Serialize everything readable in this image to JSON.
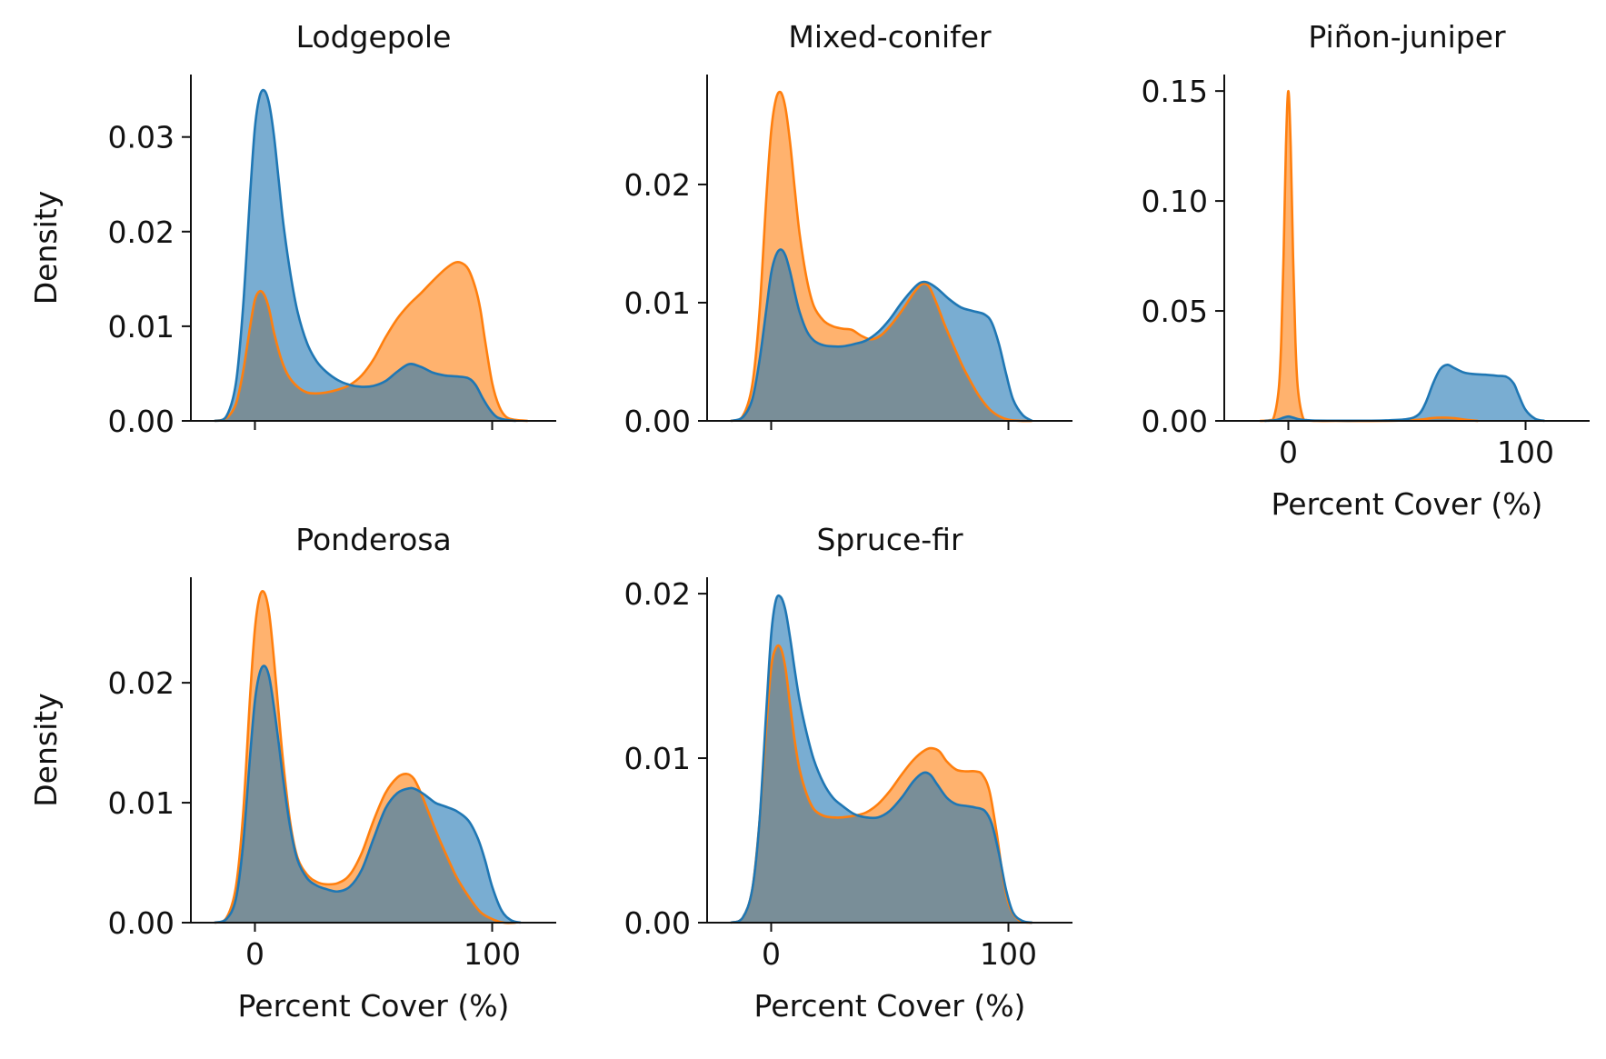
{
  "chart_data": [
    {
      "type": "area",
      "title": "Lodgepole",
      "xlabel": "",
      "ylabel": "Density",
      "xlim": [
        -27,
        127
      ],
      "ylim": [
        0,
        0.0366
      ],
      "xticks": [
        0,
        100
      ],
      "xtick_labels": [
        "",
        ""
      ],
      "yticks": [
        0,
        0.01,
        0.02,
        0.03
      ],
      "ytick_labels": [
        "0.00",
        "0.01",
        "0.02",
        "0.03"
      ],
      "series": [
        {
          "color": "#ff7f0e",
          "x": [
            -17,
            -12,
            -8,
            -5,
            -2,
            0,
            2,
            4,
            6,
            8,
            11,
            14,
            18,
            22,
            26,
            30,
            35,
            40,
            45,
            50,
            55,
            60,
            65,
            70,
            75,
            80,
            84,
            87,
            90,
            93,
            95,
            97,
            100,
            103,
            106,
            110,
            115
          ],
          "y": [
            0,
            0.0003,
            0.0018,
            0.0052,
            0.01,
            0.0128,
            0.0137,
            0.0133,
            0.0118,
            0.0094,
            0.0066,
            0.0048,
            0.0036,
            0.003,
            0.0029,
            0.003,
            0.0033,
            0.0038,
            0.0048,
            0.0065,
            0.0088,
            0.0108,
            0.0123,
            0.0135,
            0.0148,
            0.016,
            0.0167,
            0.0167,
            0.016,
            0.014,
            0.0118,
            0.0085,
            0.004,
            0.0015,
            0.0004,
            0.0001,
            0
          ]
        },
        {
          "color": "#1f77b4",
          "x": [
            -17,
            -12,
            -8,
            -5,
            -2,
            0,
            2,
            4,
            6,
            8,
            10,
            12,
            15,
            18,
            22,
            26,
            30,
            35,
            40,
            45,
            50,
            55,
            60,
            65,
            70,
            75,
            80,
            85,
            90,
            93,
            96,
            99,
            102,
            106,
            110
          ],
          "y": [
            0,
            0.0005,
            0.004,
            0.012,
            0.024,
            0.031,
            0.0343,
            0.0349,
            0.0335,
            0.0302,
            0.0255,
            0.0208,
            0.0155,
            0.0115,
            0.0082,
            0.0063,
            0.0052,
            0.0043,
            0.0038,
            0.0036,
            0.0037,
            0.0042,
            0.0052,
            0.006,
            0.0057,
            0.0051,
            0.0048,
            0.0047,
            0.0045,
            0.0038,
            0.0024,
            0.0012,
            0.0004,
            0.0001,
            0
          ]
        }
      ]
    },
    {
      "type": "area",
      "title": "Mixed-conifer",
      "xlabel": "",
      "ylabel": "",
      "xlim": [
        -27,
        127
      ],
      "ylim": [
        0,
        0.0293
      ],
      "xticks": [
        0,
        100
      ],
      "xtick_labels": [
        "",
        ""
      ],
      "yticks": [
        0,
        0.01,
        0.02
      ],
      "ytick_labels": [
        "0.00",
        "0.01",
        "0.02"
      ],
      "series": [
        {
          "color": "#ff7f0e",
          "x": [
            -17,
            -12,
            -8,
            -5,
            -2,
            0,
            2,
            4,
            6,
            8,
            10,
            12,
            15,
            18,
            22,
            26,
            30,
            34,
            38,
            42,
            46,
            50,
            55,
            60,
            63,
            65,
            67,
            70,
            73,
            77,
            81,
            85,
            88,
            92,
            96,
            100,
            105,
            110
          ],
          "y": [
            0,
            0.0004,
            0.003,
            0.009,
            0.019,
            0.0245,
            0.0272,
            0.0278,
            0.0265,
            0.0235,
            0.0195,
            0.0158,
            0.012,
            0.0097,
            0.0085,
            0.008,
            0.0078,
            0.0077,
            0.0072,
            0.0069,
            0.0072,
            0.008,
            0.0093,
            0.0108,
            0.0115,
            0.0116,
            0.0112,
            0.0098,
            0.0082,
            0.0063,
            0.0045,
            0.003,
            0.002,
            0.001,
            0.0004,
            0.0001,
            0,
            0
          ]
        },
        {
          "color": "#1f77b4",
          "x": [
            -17,
            -12,
            -8,
            -5,
            -2,
            0,
            2,
            4,
            6,
            8,
            10,
            12,
            15,
            18,
            22,
            26,
            30,
            35,
            40,
            45,
            50,
            55,
            60,
            63,
            66,
            70,
            75,
            80,
            85,
            90,
            93,
            96,
            99,
            102,
            106,
            110
          ],
          "y": [
            0,
            0.0003,
            0.0018,
            0.005,
            0.0095,
            0.0125,
            0.014,
            0.0145,
            0.014,
            0.0126,
            0.0108,
            0.0092,
            0.0076,
            0.0068,
            0.0064,
            0.0063,
            0.0063,
            0.0065,
            0.0068,
            0.0075,
            0.0086,
            0.01,
            0.0112,
            0.0117,
            0.0117,
            0.0112,
            0.0103,
            0.0096,
            0.0093,
            0.009,
            0.0083,
            0.0065,
            0.004,
            0.0018,
            0.0005,
            0
          ]
        }
      ]
    },
    {
      "type": "area",
      "title": "Piñon-juniper",
      "xlabel": "Percent Cover (%)",
      "ylabel": "",
      "xlim": [
        -27,
        127
      ],
      "ylim": [
        0,
        0.1575
      ],
      "xticks": [
        0,
        100
      ],
      "xtick_labels": [
        "0",
        "100"
      ],
      "yticks": [
        0,
        0.05,
        0.1,
        0.15
      ],
      "ytick_labels": [
        "0.00",
        "0.05",
        "0.10",
        "0.15"
      ],
      "series": [
        {
          "color": "#ff7f0e",
          "x": [
            -12,
            -8,
            -6,
            -4,
            -3,
            -2,
            -1,
            0,
            1,
            2,
            3,
            4,
            6,
            8,
            12,
            20,
            40,
            55,
            60,
            65,
            70,
            75,
            80
          ],
          "y": [
            0,
            0.0003,
            0.002,
            0.015,
            0.036,
            0.075,
            0.125,
            0.15,
            0.125,
            0.075,
            0.036,
            0.015,
            0.002,
            0.0003,
            0,
            0,
            0,
            0.0005,
            0.0012,
            0.0015,
            0.0012,
            0.0005,
            0
          ]
        },
        {
          "color": "#1f77b4",
          "x": [
            -10,
            -5,
            -2,
            0,
            2,
            5,
            10,
            20,
            30,
            40,
            50,
            55,
            58,
            61,
            64,
            67,
            70,
            74,
            78,
            83,
            88,
            92,
            95,
            97,
            100,
            104,
            108
          ],
          "y": [
            0,
            0.0004,
            0.0015,
            0.002,
            0.0015,
            0.0006,
            0.0002,
            0.0001,
            0.0001,
            0.0002,
            0.0008,
            0.003,
            0.0085,
            0.017,
            0.0235,
            0.0255,
            0.024,
            0.022,
            0.0213,
            0.021,
            0.0205,
            0.02,
            0.017,
            0.012,
            0.005,
            0.001,
            0
          ]
        }
      ]
    },
    {
      "type": "area",
      "title": "Ponderosa",
      "xlabel": "Percent Cover (%)",
      "ylabel": "Density",
      "xlim": [
        -27,
        127
      ],
      "ylim": [
        0,
        0.0288
      ],
      "xticks": [
        0,
        100
      ],
      "xtick_labels": [
        "0",
        "100"
      ],
      "yticks": [
        0,
        0.01,
        0.02
      ],
      "ytick_labels": [
        "0.00",
        "0.01",
        "0.02"
      ],
      "series": [
        {
          "color": "#ff7f0e",
          "x": [
            -17,
            -12,
            -8,
            -5,
            -2,
            0,
            2,
            4,
            6,
            8,
            10,
            12,
            15,
            18,
            22,
            26,
            30,
            35,
            40,
            45,
            50,
            55,
            60,
            64,
            67,
            70,
            73,
            77,
            81,
            85,
            90,
            95,
            100,
            105,
            110
          ],
          "y": [
            0,
            0.0004,
            0.003,
            0.009,
            0.019,
            0.0245,
            0.0272,
            0.0275,
            0.0258,
            0.022,
            0.0175,
            0.0132,
            0.0082,
            0.0054,
            0.004,
            0.0034,
            0.0032,
            0.0033,
            0.004,
            0.0058,
            0.0085,
            0.0108,
            0.0121,
            0.0124,
            0.012,
            0.0108,
            0.0093,
            0.0073,
            0.0055,
            0.0038,
            0.0022,
            0.0009,
            0.0003,
            0,
            0
          ]
        },
        {
          "color": "#1f77b4",
          "x": [
            -17,
            -12,
            -8,
            -5,
            -2,
            0,
            2,
            4,
            6,
            8,
            10,
            12,
            15,
            18,
            22,
            26,
            30,
            35,
            40,
            45,
            50,
            55,
            60,
            65,
            68,
            72,
            76,
            80,
            85,
            90,
            94,
            97,
            100,
            104,
            108,
            112
          ],
          "y": [
            0,
            0.0003,
            0.002,
            0.0065,
            0.014,
            0.0185,
            0.0208,
            0.0214,
            0.0205,
            0.018,
            0.015,
            0.0118,
            0.0078,
            0.0052,
            0.0037,
            0.0031,
            0.0028,
            0.0026,
            0.003,
            0.0044,
            0.007,
            0.0095,
            0.0108,
            0.0112,
            0.0111,
            0.0106,
            0.01,
            0.0097,
            0.0093,
            0.0085,
            0.007,
            0.0052,
            0.003,
            0.001,
            0.0002,
            0
          ]
        }
      ]
    },
    {
      "type": "area",
      "title": "Spruce-fir",
      "xlabel": "Percent Cover (%)",
      "ylabel": "",
      "xlim": [
        -27,
        127
      ],
      "ylim": [
        0,
        0.021
      ],
      "xticks": [
        0,
        100
      ],
      "xtick_labels": [
        "0",
        "100"
      ],
      "yticks": [
        0,
        0.01,
        0.02
      ],
      "ytick_labels": [
        "0.00",
        "0.01",
        "0.02"
      ],
      "series": [
        {
          "color": "#ff7f0e",
          "x": [
            -17,
            -12,
            -8,
            -5,
            -2,
            0,
            2,
            4,
            6,
            8,
            10,
            12,
            15,
            18,
            22,
            26,
            30,
            35,
            40,
            45,
            50,
            55,
            60,
            65,
            68,
            71,
            74,
            78,
            82,
            86,
            89,
            92,
            95,
            98,
            101,
            105,
            110
          ],
          "y": [
            0,
            0.0003,
            0.002,
            0.006,
            0.012,
            0.0155,
            0.0167,
            0.0167,
            0.0155,
            0.0132,
            0.011,
            0.0093,
            0.0078,
            0.0069,
            0.0065,
            0.0064,
            0.0064,
            0.0065,
            0.0067,
            0.0072,
            0.008,
            0.009,
            0.0099,
            0.0105,
            0.0106,
            0.0104,
            0.0098,
            0.0093,
            0.0092,
            0.0092,
            0.009,
            0.008,
            0.0055,
            0.0025,
            0.0008,
            0.0001,
            0
          ]
        },
        {
          "color": "#1f77b4",
          "x": [
            -17,
            -12,
            -8,
            -5,
            -2,
            0,
            2,
            4,
            6,
            8,
            10,
            12,
            15,
            18,
            22,
            26,
            30,
            35,
            40,
            45,
            50,
            55,
            60,
            64,
            67,
            70,
            74,
            78,
            82,
            86,
            90,
            93,
            96,
            99,
            102,
            106,
            110
          ],
          "y": [
            0,
            0.0003,
            0.002,
            0.006,
            0.013,
            0.0175,
            0.0196,
            0.0198,
            0.019,
            0.0173,
            0.0153,
            0.0135,
            0.0115,
            0.0099,
            0.0085,
            0.0076,
            0.0071,
            0.0066,
            0.0064,
            0.0064,
            0.0068,
            0.0076,
            0.0086,
            0.0091,
            0.009,
            0.0084,
            0.0076,
            0.0072,
            0.0071,
            0.007,
            0.0068,
            0.006,
            0.0042,
            0.002,
            0.0006,
            0.0001,
            0
          ]
        }
      ]
    }
  ]
}
